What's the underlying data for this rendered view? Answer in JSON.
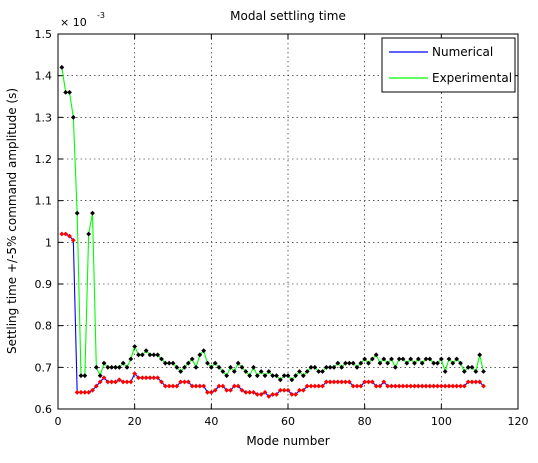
{
  "chart_data": {
    "type": "line",
    "title": "Modal settling time",
    "xlabel": "Mode number",
    "ylabel": "Settling time +/-5% command amplitude (s)",
    "multiplier_label": "× 10",
    "multiplier_exponent": "-3",
    "xlim": [
      0,
      120
    ],
    "ylim": [
      0.6,
      1.5
    ],
    "x_ticks": [
      0,
      20,
      40,
      60,
      80,
      100,
      120
    ],
    "y_ticks": [
      0.6,
      0.7,
      0.8,
      0.9,
      1,
      1.1,
      1.2,
      1.3,
      1.4,
      1.5
    ],
    "y_tick_labels": [
      "0.6",
      "0.7",
      "0.8",
      "0.9",
      "1",
      "1.1",
      "1.2",
      "1.3",
      "1.4",
      "1.5"
    ],
    "grid": true,
    "legend_position": "top-right",
    "series": [
      {
        "name": "Numerical",
        "color": "#0000ff",
        "marker_color": "#ff0000",
        "x": [
          1,
          2,
          3,
          4,
          5,
          6,
          7,
          8,
          9,
          10,
          11,
          12,
          13,
          14,
          15,
          16,
          17,
          18,
          19,
          20,
          21,
          22,
          23,
          24,
          25,
          26,
          27,
          28,
          29,
          30,
          31,
          32,
          33,
          34,
          35,
          36,
          37,
          38,
          39,
          40,
          41,
          42,
          43,
          44,
          45,
          46,
          47,
          48,
          49,
          50,
          51,
          52,
          53,
          54,
          55,
          56,
          57,
          58,
          59,
          60,
          61,
          62,
          63,
          64,
          65,
          66,
          67,
          68,
          69,
          70,
          71,
          72,
          73,
          74,
          75,
          76,
          77,
          78,
          79,
          80,
          81,
          82,
          83,
          84,
          85,
          86,
          87,
          88,
          89,
          90,
          91,
          92,
          93,
          94,
          95,
          96,
          97,
          98,
          99,
          100,
          101,
          102,
          103,
          104,
          105,
          106,
          107,
          108,
          109,
          110,
          111
        ],
        "values": [
          1.02,
          1.02,
          1.015,
          1.005,
          0.64,
          0.64,
          0.64,
          0.64,
          0.645,
          0.655,
          0.665,
          0.675,
          0.665,
          0.665,
          0.665,
          0.67,
          0.665,
          0.665,
          0.665,
          0.685,
          0.675,
          0.675,
          0.675,
          0.675,
          0.675,
          0.675,
          0.665,
          0.655,
          0.655,
          0.655,
          0.655,
          0.665,
          0.665,
          0.665,
          0.655,
          0.655,
          0.655,
          0.655,
          0.64,
          0.64,
          0.645,
          0.655,
          0.655,
          0.645,
          0.645,
          0.655,
          0.655,
          0.645,
          0.64,
          0.64,
          0.64,
          0.635,
          0.635,
          0.64,
          0.63,
          0.635,
          0.635,
          0.645,
          0.645,
          0.645,
          0.635,
          0.635,
          0.645,
          0.645,
          0.655,
          0.655,
          0.655,
          0.655,
          0.655,
          0.665,
          0.665,
          0.665,
          0.665,
          0.665,
          0.665,
          0.665,
          0.655,
          0.655,
          0.655,
          0.665,
          0.665,
          0.665,
          0.655,
          0.655,
          0.665,
          0.655,
          0.655,
          0.655,
          0.655,
          0.655,
          0.655,
          0.655,
          0.655,
          0.655,
          0.655,
          0.655,
          0.655,
          0.655,
          0.655,
          0.655,
          0.655,
          0.655,
          0.655,
          0.655,
          0.655,
          0.655,
          0.665,
          0.665,
          0.665,
          0.665,
          0.655
        ]
      },
      {
        "name": "Experimental",
        "color": "#00ff00",
        "marker_color": "#000000",
        "x": [
          1,
          2,
          3,
          4,
          5,
          6,
          7,
          8,
          9,
          10,
          11,
          12,
          13,
          14,
          15,
          16,
          17,
          18,
          19,
          20,
          21,
          22,
          23,
          24,
          25,
          26,
          27,
          28,
          29,
          30,
          31,
          32,
          33,
          34,
          35,
          36,
          37,
          38,
          39,
          40,
          41,
          42,
          43,
          44,
          45,
          46,
          47,
          48,
          49,
          50,
          51,
          52,
          53,
          54,
          55,
          56,
          57,
          58,
          59,
          60,
          61,
          62,
          63,
          64,
          65,
          66,
          67,
          68,
          69,
          70,
          71,
          72,
          73,
          74,
          75,
          76,
          77,
          78,
          79,
          80,
          81,
          82,
          83,
          84,
          85,
          86,
          87,
          88,
          89,
          90,
          91,
          92,
          93,
          94,
          95,
          96,
          97,
          98,
          99,
          100,
          101,
          102,
          103,
          104,
          105,
          106,
          107,
          108,
          109,
          110,
          111
        ],
        "values": [
          1.42,
          1.36,
          1.36,
          1.3,
          1.07,
          0.68,
          0.68,
          1.02,
          1.07,
          0.7,
          0.68,
          0.71,
          0.7,
          0.7,
          0.7,
          0.7,
          0.71,
          0.7,
          0.72,
          0.75,
          0.73,
          0.73,
          0.74,
          0.73,
          0.73,
          0.73,
          0.72,
          0.71,
          0.71,
          0.71,
          0.7,
          0.69,
          0.7,
          0.71,
          0.72,
          0.7,
          0.73,
          0.74,
          0.71,
          0.7,
          0.71,
          0.7,
          0.69,
          0.68,
          0.7,
          0.69,
          0.71,
          0.7,
          0.69,
          0.68,
          0.7,
          0.68,
          0.69,
          0.68,
          0.69,
          0.68,
          0.68,
          0.67,
          0.68,
          0.68,
          0.67,
          0.68,
          0.69,
          0.68,
          0.69,
          0.7,
          0.7,
          0.69,
          0.69,
          0.7,
          0.7,
          0.7,
          0.71,
          0.7,
          0.71,
          0.71,
          0.71,
          0.7,
          0.71,
          0.72,
          0.71,
          0.72,
          0.73,
          0.71,
          0.72,
          0.71,
          0.72,
          0.7,
          0.72,
          0.72,
          0.71,
          0.72,
          0.71,
          0.72,
          0.71,
          0.72,
          0.72,
          0.71,
          0.71,
          0.72,
          0.69,
          0.72,
          0.71,
          0.72,
          0.71,
          0.69,
          0.7,
          0.7,
          0.69,
          0.73,
          0.69
        ]
      }
    ]
  }
}
